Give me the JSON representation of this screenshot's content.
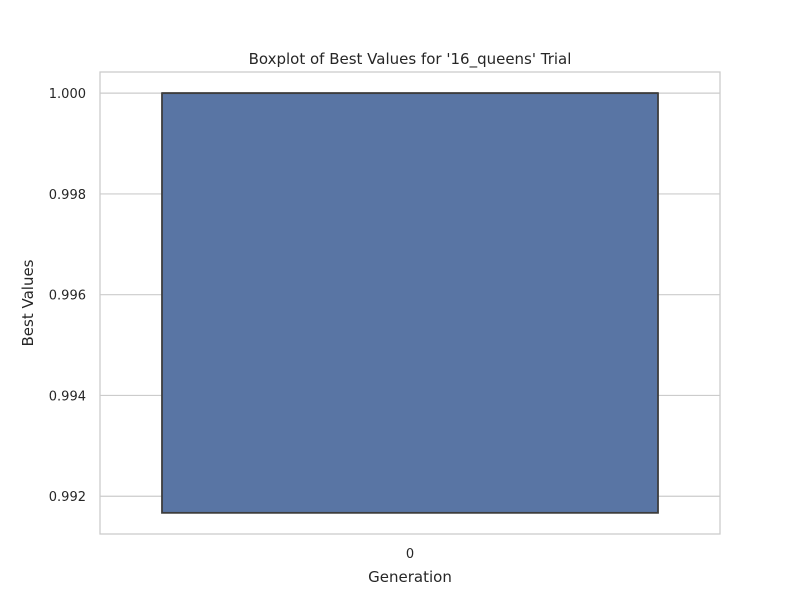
{
  "chart_data": {
    "type": "box",
    "title": "Boxplot of Best Values for '16_queens' Trial",
    "xlabel": "Generation",
    "ylabel": "Best Values",
    "categories": [
      "0"
    ],
    "boxes": [
      {
        "category": "0",
        "q1": 0.99167,
        "median": 1.0,
        "q3": 1.0,
        "whisker_low": 0.99167,
        "whisker_high": 1.0
      }
    ],
    "yticks": [
      0.992,
      0.994,
      0.996,
      0.998,
      1.0
    ],
    "ytick_labels": [
      "0.992",
      "0.994",
      "0.996",
      "0.998",
      "1.000"
    ],
    "ylim": [
      0.99125,
      1.00042
    ],
    "grid": true,
    "legend": "none",
    "colors": {
      "box_fill": "#5975a4",
      "box_edge": "#3d3d3d",
      "grid": "#cccccc",
      "spine": "#cccccc"
    }
  }
}
